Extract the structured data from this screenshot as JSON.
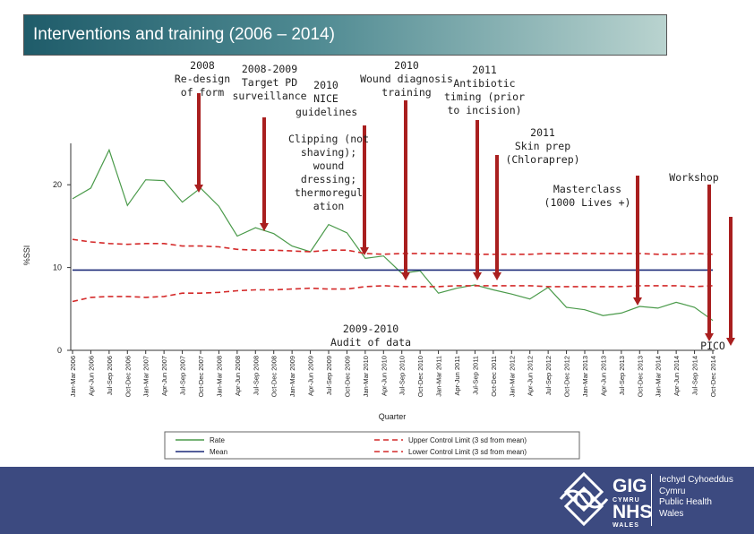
{
  "header": {
    "title": "Interventions and training (2006 – 2014)"
  },
  "annotations": {
    "a1": "2008\nRe-design\nof form",
    "a2": "2008-2009\nTarget PD\nsurveillance",
    "a3": "2010\nNICE\nguidelines",
    "a4": "2010\nWound diagnosis\ntraining",
    "a5": "2011\nAntibiotic\ntiming (prior\nto incision)",
    "a6": "Clipping (not\nshaving);\nwound\ndressing;\nthermoregul\nation",
    "a7": "2011\nSkin prep\n(Chloraprep)",
    "a8": "Masterclass\n(1000 Lives +)",
    "a9": "Workshop",
    "a10": "2009-2010\nAudit of data",
    "a11": "PICO"
  },
  "footer": {
    "logo_top_left": "GIG",
    "logo_top_small": "CYMRU",
    "logo_bottom_left": "NHS",
    "logo_bottom_small": "WALES",
    "org_welsh_1": "Iechyd Cyhoeddus",
    "org_welsh_2": "Cymru",
    "org_english_1": "Public Health",
    "org_english_2": "Wales"
  },
  "chart_data": {
    "type": "line",
    "xlabel": "Quarter",
    "ylabel": "%SSI",
    "ylim": [
      0,
      25
    ],
    "yticks": [
      0,
      10,
      20
    ],
    "categories": [
      "Jan-Mar 2006",
      "Apr-Jun 2006",
      "Jul-Sep 2006",
      "Oct-Dec 2006",
      "Jan-Mar 2007",
      "Apr-Jun 2007",
      "Jul-Sep 2007",
      "Oct-Dec 2007",
      "Jan-Mar 2008",
      "Apr-Jun 2008",
      "Jul-Sep 2008",
      "Oct-Dec 2008",
      "Jan-Mar 2009",
      "Apr-Jun 2009",
      "Jul-Sep 2009",
      "Oct-Dec 2009",
      "Jan-Mar 2010",
      "Apr-Jun 2010",
      "Jul-Sep 2010",
      "Oct-Dec 2010",
      "Jan-Mar 2011",
      "Apr-Jun 2011",
      "Jul-Sep 2011",
      "Oct-Dec 2011",
      "Jan-Mar 2012",
      "Apr-Jun 2012",
      "Jul-Sep 2012",
      "Oct-Dec 2012",
      "Jan-Mar 2013",
      "Apr-Jun 2013",
      "Jul-Sep 2013",
      "Oct-Dec 2013",
      "Jan-Mar 2014",
      "Apr-Jun 2014",
      "Jul-Sep 2014",
      "Oct-Dec 2014"
    ],
    "series": [
      {
        "name": "Rate",
        "color": "#4a9a4a",
        "dash": "",
        "width": 1.2,
        "values": [
          18.3,
          19.6,
          24.2,
          17.5,
          20.6,
          20.5,
          17.9,
          19.6,
          17.4,
          13.8,
          14.8,
          14.1,
          12.6,
          11.9,
          15.2,
          14.2,
          11.1,
          11.4,
          9.3,
          9.6,
          6.9,
          7.5,
          7.9,
          7.3,
          6.8,
          6.2,
          7.6,
          5.2,
          4.9,
          4.2,
          4.5,
          5.3,
          5.1,
          5.8,
          5.2,
          3.6
        ]
      },
      {
        "name": "Mean",
        "color": "#1c2a78",
        "dash": "",
        "width": 1.6,
        "values": [
          9.7,
          9.7,
          9.7,
          9.7,
          9.7,
          9.7,
          9.7,
          9.7,
          9.7,
          9.7,
          9.7,
          9.7,
          9.7,
          9.7,
          9.7,
          9.7,
          9.7,
          9.7,
          9.7,
          9.7,
          9.7,
          9.7,
          9.7,
          9.7,
          9.7,
          9.7,
          9.7,
          9.7,
          9.7,
          9.7,
          9.7,
          9.7,
          9.7,
          9.7,
          9.7,
          9.7
        ]
      },
      {
        "name": "Upper Control Limit (3 sd from mean)",
        "color": "#d42a2a",
        "dash": "6,4",
        "width": 1.6,
        "values": [
          13.4,
          13.1,
          12.9,
          12.8,
          12.9,
          12.9,
          12.6,
          12.6,
          12.5,
          12.2,
          12.1,
          12.1,
          12.0,
          11.9,
          12.1,
          12.1,
          11.7,
          11.6,
          11.7,
          11.7,
          11.7,
          11.7,
          11.6,
          11.6,
          11.6,
          11.6,
          11.7,
          11.7,
          11.7,
          11.7,
          11.7,
          11.7,
          11.6,
          11.6,
          11.7,
          11.6
        ]
      },
      {
        "name": "Lower Control Limit (3 sd from mean)",
        "color": "#d42a2a",
        "dash": "6,4",
        "width": 1.6,
        "values": [
          5.9,
          6.4,
          6.5,
          6.5,
          6.4,
          6.5,
          6.9,
          6.9,
          7.0,
          7.2,
          7.3,
          7.3,
          7.4,
          7.5,
          7.4,
          7.4,
          7.7,
          7.8,
          7.7,
          7.7,
          7.7,
          7.8,
          7.8,
          7.8,
          7.8,
          7.8,
          7.7,
          7.7,
          7.7,
          7.7,
          7.7,
          7.8,
          7.8,
          7.8,
          7.7,
          7.8
        ]
      }
    ],
    "legend": {
      "placement": "bottom",
      "items": [
        {
          "label": "Rate",
          "color": "#4a9a4a",
          "dash": ""
        },
        {
          "label": "Upper Control Limit (3 sd from mean)",
          "color": "#d42a2a",
          "dash": "6,4"
        },
        {
          "label": "Mean",
          "color": "#1c2a78",
          "dash": ""
        },
        {
          "label": "Lower Control Limit (3 sd from mean)",
          "color": "#d42a2a",
          "dash": "6,4"
        }
      ]
    },
    "arrow_color": "#a91f1f"
  }
}
